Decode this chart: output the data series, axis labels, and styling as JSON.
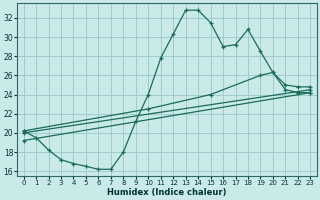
{
  "xlabel": "Humidex (Indice chaleur)",
  "bg_color": "#caeaea",
  "grid_color": "#a0cccc",
  "line_color": "#1a6b5a",
  "xlim": [
    -0.5,
    23.5
  ],
  "ylim": [
    15.5,
    33.5
  ],
  "xticks": [
    0,
    1,
    2,
    3,
    4,
    5,
    6,
    7,
    8,
    9,
    10,
    11,
    12,
    13,
    14,
    15,
    16,
    17,
    18,
    19,
    20,
    21,
    22,
    23
  ],
  "yticks": [
    16,
    18,
    20,
    22,
    24,
    26,
    28,
    30,
    32
  ],
  "curve_x": [
    0,
    1,
    2,
    3,
    4,
    5,
    6,
    7,
    8,
    9,
    10,
    11,
    12,
    13,
    14,
    15,
    16,
    17,
    18,
    19,
    20,
    21,
    22,
    23
  ],
  "curve_y": [
    20.2,
    19.5,
    18.2,
    17.2,
    16.8,
    16.5,
    16.2,
    16.2,
    18.0,
    21.2,
    24.0,
    27.8,
    30.3,
    32.8,
    32.8,
    31.5,
    29.0,
    29.2,
    30.8,
    28.5,
    26.3,
    24.5,
    24.2,
    24.2
  ],
  "line2_x": [
    0,
    10,
    15,
    19,
    20,
    21,
    22,
    23
  ],
  "line2_y": [
    20.2,
    22.5,
    24.0,
    26.0,
    26.3,
    25.0,
    24.8,
    24.8
  ],
  "line3_x": [
    0,
    23
  ],
  "line3_y": [
    20.0,
    24.5
  ],
  "line4_x": [
    0,
    23
  ],
  "line4_y": [
    19.2,
    24.2
  ]
}
